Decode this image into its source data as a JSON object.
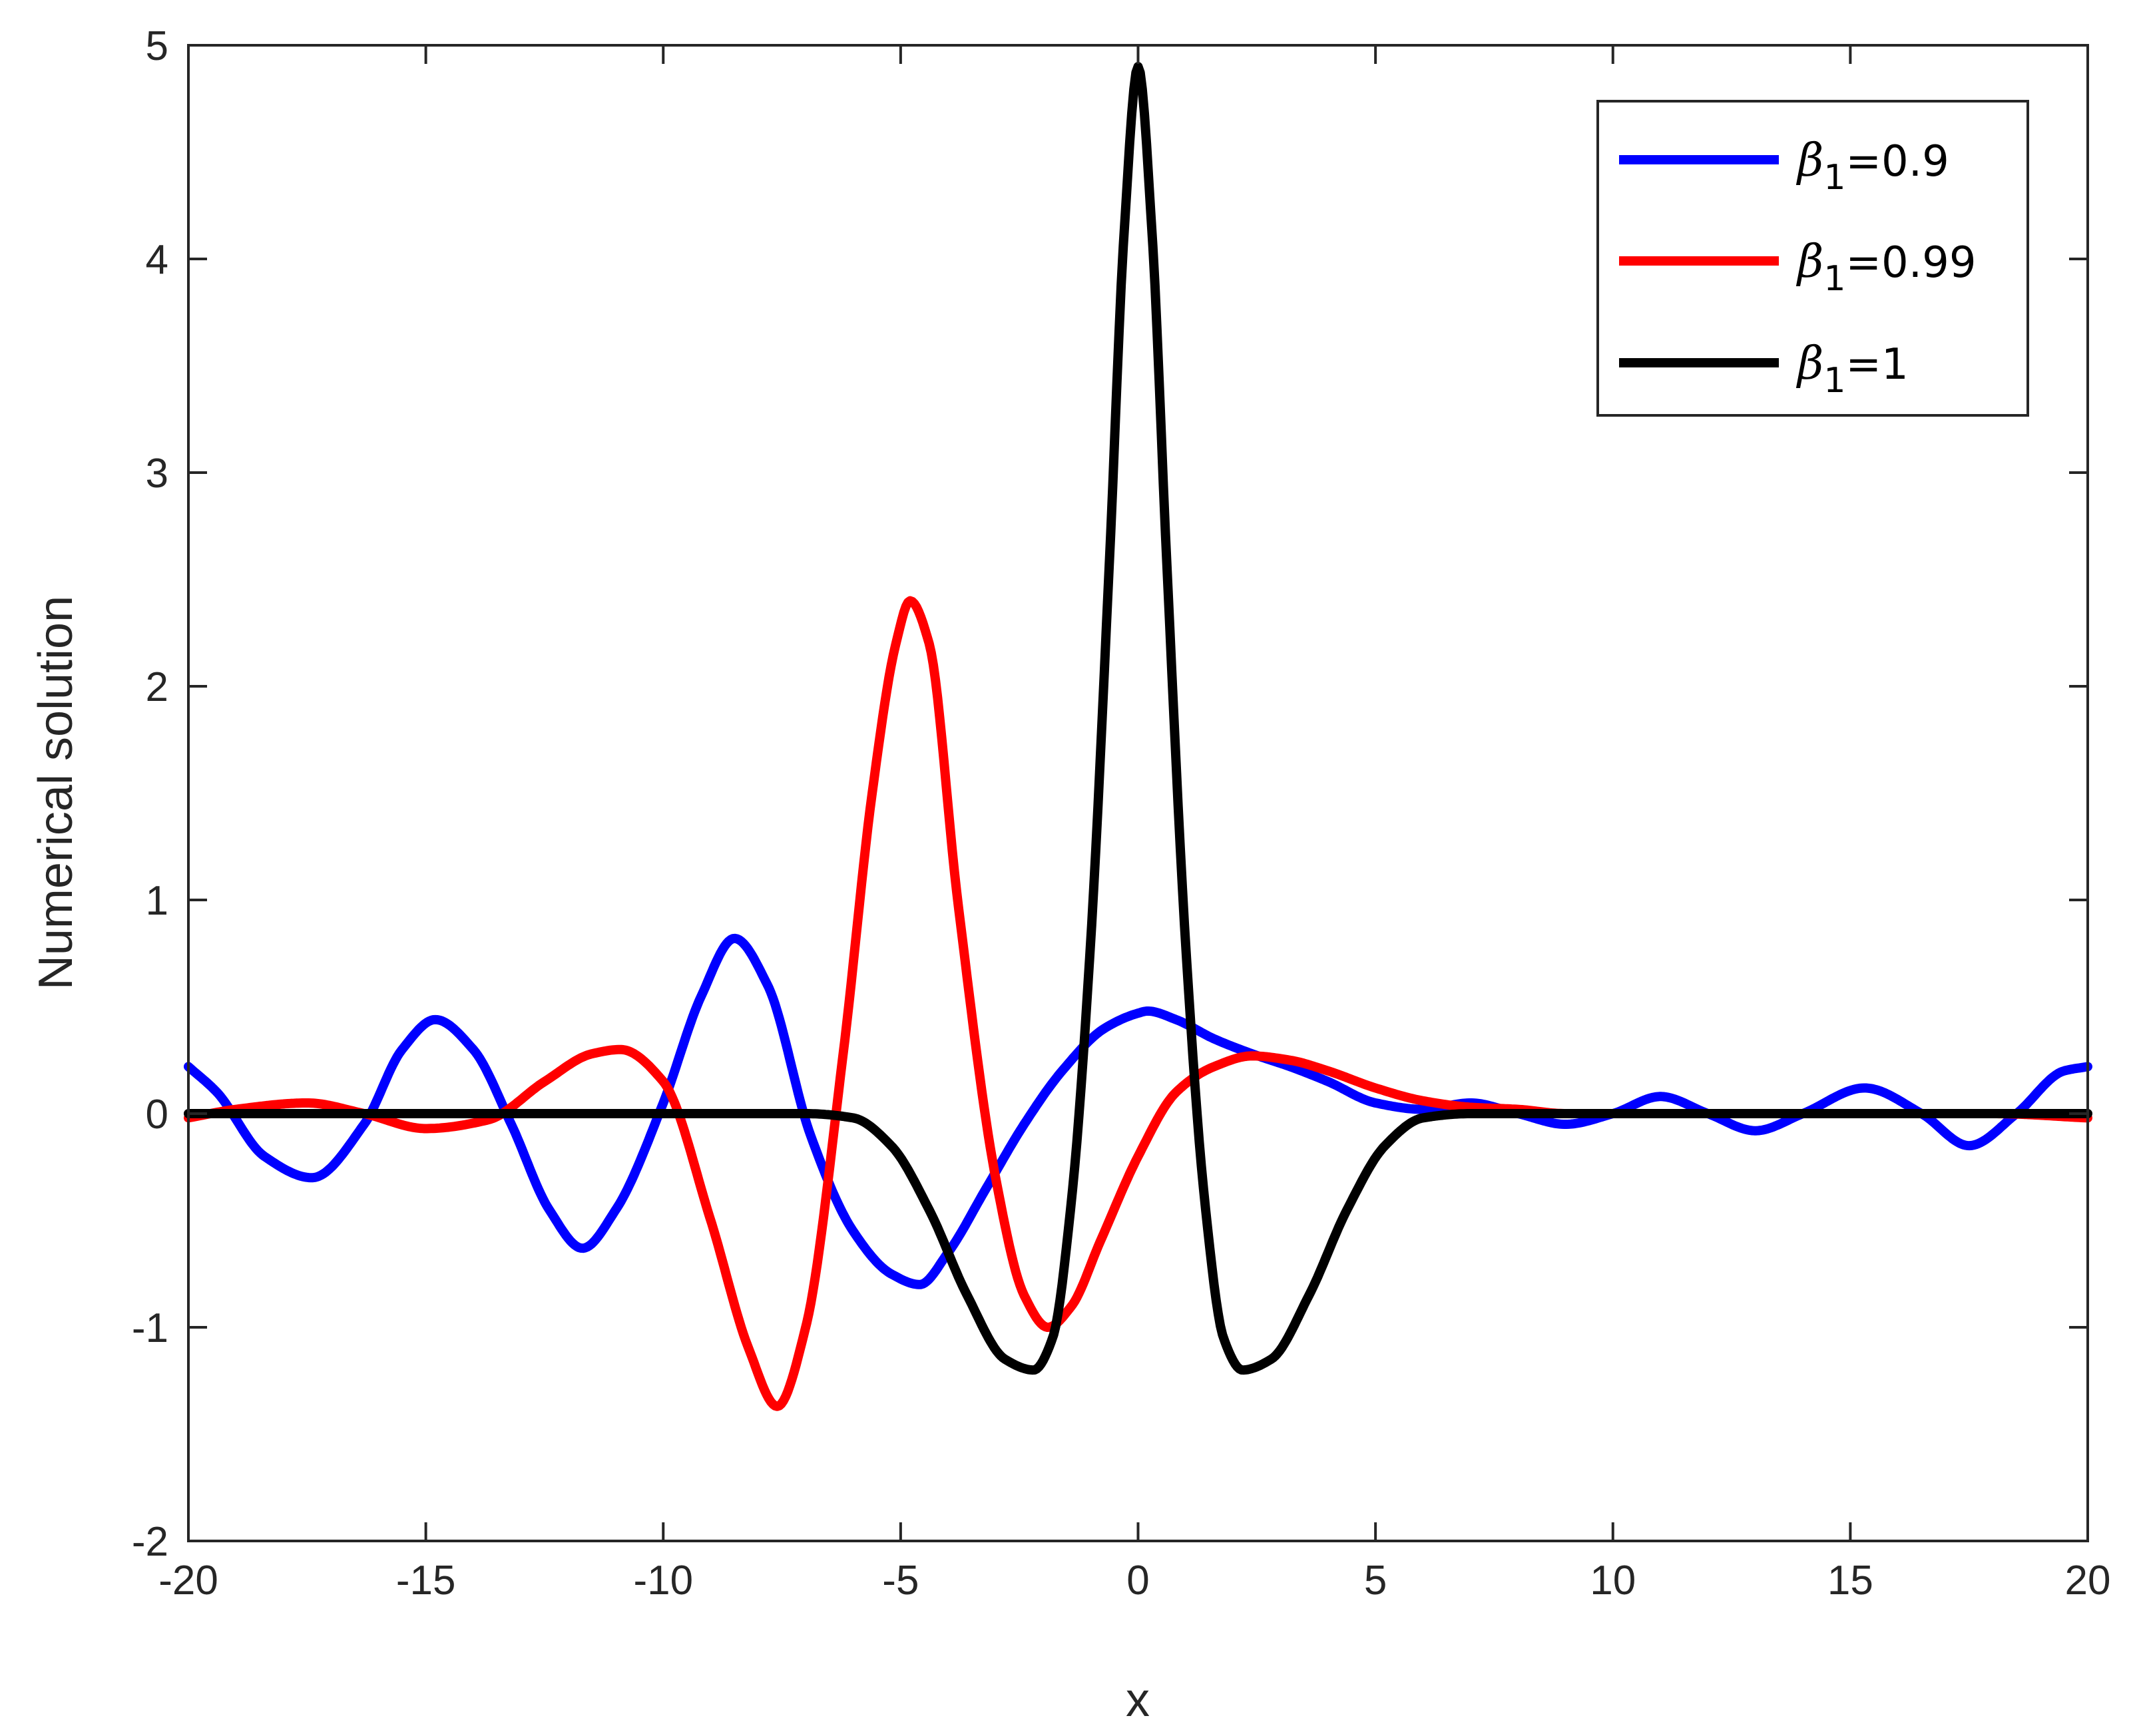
{
  "chart_data": {
    "type": "line",
    "title": "",
    "xlabel": "x",
    "ylabel": "Numerical solution",
    "xlim": [
      -20,
      20
    ],
    "ylim": [
      -2,
      5
    ],
    "xticks": [
      "-20",
      "-15",
      "-10",
      "-5",
      "0",
      "5",
      "10",
      "15",
      "20"
    ],
    "yticks": [
      "-2",
      "-1",
      "0",
      "1",
      "2",
      "3",
      "4",
      "5"
    ],
    "grid": false,
    "legend_position": "top-right",
    "series": [
      {
        "name": "β1=0.9",
        "legend": {
          "symbol": "β",
          "subscript": "1",
          "value": "=0.9"
        },
        "color": "#0000ff",
        "x": [
          -20,
          -19.4,
          -18.4,
          -17.4,
          -16.3,
          -15.5,
          -14.8,
          -14.0,
          -13.2,
          -12.4,
          -11.7,
          -11.0,
          -10.0,
          -9.2,
          -8.5,
          -7.8,
          -6.9,
          -6.0,
          -5.2,
          -4.6,
          -4.0,
          -3.2,
          -2.4,
          -1.6,
          -0.7,
          0,
          0.2,
          0.8,
          1.6,
          2.4,
          3.2,
          4.0,
          5.0,
          6.0,
          7.0,
          8.0,
          9.0,
          10.0,
          11.0,
          12.0,
          13.0,
          14.0,
          15.3,
          16.5,
          17.5,
          18.5,
          19.5,
          20
        ],
        "y": [
          0.22,
          0.1,
          -0.2,
          -0.3,
          -0.05,
          0.3,
          0.44,
          0.3,
          -0.05,
          -0.45,
          -0.63,
          -0.45,
          0.05,
          0.55,
          0.82,
          0.6,
          -0.1,
          -0.55,
          -0.75,
          -0.8,
          -0.65,
          -0.35,
          -0.05,
          0.2,
          0.4,
          0.47,
          0.48,
          0.44,
          0.35,
          0.28,
          0.22,
          0.15,
          0.05,
          0.02,
          0.05,
          0.0,
          -0.05,
          0.0,
          0.08,
          0.0,
          -0.08,
          0.0,
          0.12,
          0.0,
          -0.15,
          0.0,
          0.2,
          0.22
        ]
      },
      {
        "name": "β1=0.99",
        "legend": {
          "symbol": "β",
          "subscript": "1",
          "value": "=0.99"
        },
        "color": "#ff0000",
        "x": [
          -20,
          -19.0,
          -17.5,
          -16.3,
          -15.0,
          -13.7,
          -12.5,
          -11.5,
          -10.9,
          -10.0,
          -9.0,
          -8.2,
          -7.6,
          -7.0,
          -6.2,
          -5.6,
          -5.1,
          -4.8,
          -4.4,
          -3.8,
          -3.0,
          -2.4,
          -1.9,
          -1.4,
          -0.8,
          0,
          0.8,
          1.6,
          2.4,
          3.2,
          4.0,
          5.0,
          6.0,
          7.0,
          8.0,
          9.0,
          10.0,
          12.0,
          14.0,
          16.0,
          18.0,
          20
        ],
        "y": [
          -0.02,
          0.02,
          0.05,
          0.0,
          -0.07,
          -0.03,
          0.15,
          0.28,
          0.3,
          0.15,
          -0.5,
          -1.1,
          -1.37,
          -1.0,
          0.3,
          1.5,
          2.2,
          2.4,
          2.2,
          1.0,
          -0.3,
          -0.85,
          -1.0,
          -0.9,
          -0.6,
          -0.2,
          0.1,
          0.22,
          0.27,
          0.25,
          0.2,
          0.12,
          0.06,
          0.03,
          0.02,
          0.0,
          0.0,
          0.0,
          0.0,
          0.0,
          0.0,
          -0.02
        ]
      },
      {
        "name": "β1=1",
        "legend": {
          "symbol": "β",
          "subscript": "1",
          "value": "=1"
        },
        "color": "#000000",
        "x": [
          -20,
          -10,
          -7.0,
          -6.0,
          -5.2,
          -4.4,
          -3.6,
          -2.8,
          -2.2,
          -1.8,
          -1.4,
          -1.0,
          -0.6,
          -0.3,
          0,
          0.3,
          0.6,
          1.0,
          1.4,
          1.8,
          2.2,
          2.8,
          3.6,
          4.4,
          5.2,
          6.0,
          7.0,
          10,
          20
        ],
        "y": [
          0.0,
          0.0,
          0.0,
          -0.02,
          -0.15,
          -0.45,
          -0.85,
          -1.15,
          -1.2,
          -1.05,
          -0.4,
          0.8,
          2.6,
          4.1,
          4.9,
          4.1,
          2.6,
          0.8,
          -0.4,
          -1.05,
          -1.2,
          -1.15,
          -0.85,
          -0.45,
          -0.15,
          -0.02,
          0.0,
          0.0,
          0.0
        ]
      }
    ]
  }
}
